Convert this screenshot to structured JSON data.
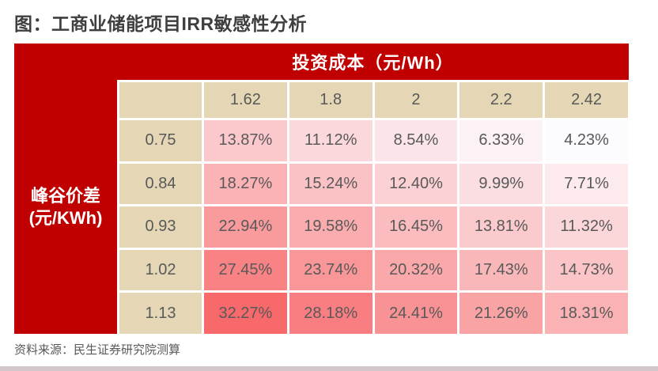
{
  "title": "图：工商业储能项目IRR敏感性分析",
  "source_note": "资料来源：民生证券研究院测算",
  "table": {
    "top_header": "投资成本（元/Wh）",
    "left_header_line1": "峰谷价差",
    "left_header_line2": "(元/KWh)"
  },
  "colors": {
    "header_red": "#C00000",
    "axis_beige": "#E5D7B5",
    "cell_text": "#595959",
    "title_text": "#3F3F3F",
    "bottom_bar": "#D2C8CB"
  },
  "chart_data": {
    "type": "heatmap",
    "title": "工商业储能项目IRR敏感性分析",
    "x_axis_label": "投资成本（元/Wh）",
    "y_axis_label": "峰谷价差（元/KWh）",
    "columns": [
      "1.62",
      "1.8",
      "2",
      "2.2",
      "2.42"
    ],
    "rows": [
      "0.75",
      "0.84",
      "0.93",
      "1.02",
      "1.13"
    ],
    "values": [
      [
        "13.87%",
        "11.12%",
        "8.54%",
        "6.33%",
        "4.23%"
      ],
      [
        "18.27%",
        "15.24%",
        "12.40%",
        "9.99%",
        "7.71%"
      ],
      [
        "22.94%",
        "19.58%",
        "16.45%",
        "13.81%",
        "11.32%"
      ],
      [
        "27.45%",
        "23.74%",
        "20.32%",
        "17.43%",
        "14.73%"
      ],
      [
        "32.27%",
        "28.18%",
        "24.41%",
        "21.26%",
        "18.31%"
      ]
    ],
    "color_scale": {
      "min_value": 4.23,
      "max_value": 32.27,
      "min_color": "#FCFCFF",
      "max_color": "#F8696B"
    }
  }
}
